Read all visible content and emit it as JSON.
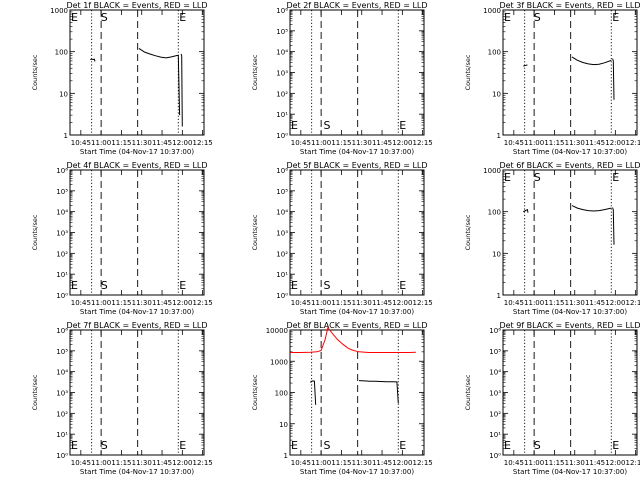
{
  "page": {
    "background": "#ffffff",
    "event_color": "#000000",
    "lld_color": "#ff0000"
  },
  "x_ticks": [
    "10:45",
    "11:00",
    "11:15",
    "11:30",
    "11:45",
    "12:00",
    "12:15"
  ],
  "marker_labels": {
    "start": "S",
    "end": "E"
  },
  "chart_data": [
    {
      "type": "line",
      "title": "Det 1f BLACK = Events, RED = LLD",
      "xlabel": "Start Time (04-Nov-17 10:37:00)",
      "ylabel": "Counts/sec",
      "xlim": [
        "10:37",
        "12:16"
      ],
      "ylim": [
        1,
        1000
      ],
      "y_ticks": [
        "1",
        "10",
        "100",
        "1000"
      ],
      "log_y": true,
      "dotted_lines": [
        "10:53",
        "11:57"
      ],
      "dashed_lines": [
        "11:00",
        "11:27"
      ],
      "markers": {
        "start_x": "10:59",
        "end_x": "11:57",
        "top": true
      },
      "series": [
        {
          "color": "black",
          "points": [
            [
              "10:52",
              65
            ],
            [
              "10:53",
              66
            ],
            [
              "10:54",
              65
            ],
            [
              "10:55",
              66
            ],
            [
              "10:55.5",
              58
            ]
          ]
        },
        {
          "color": "black",
          "points": [
            [
              "11:28",
              120
            ],
            [
              "11:32",
              98
            ],
            [
              "11:36",
              88
            ],
            [
              "11:40",
              80
            ],
            [
              "11:44",
              74
            ],
            [
              "11:48",
              71
            ],
            [
              "11:52",
              75
            ],
            [
              "11:56",
              81
            ],
            [
              "11:57",
              82
            ],
            [
              "11:58",
              3
            ]
          ]
        },
        {
          "color": "black",
          "points": [
            [
              "11:59",
              88
            ],
            [
              "11:59.5",
              80
            ],
            [
              "12:00",
              1.6
            ]
          ]
        }
      ]
    },
    {
      "type": "line",
      "title": "Det 2f BLACK = Events, RED = LLD",
      "xlabel": "Start Time (04-Nov-17 10:37:00)",
      "ylabel": "Counts/sec",
      "xlim": [
        "10:37",
        "12:16"
      ],
      "ylim": [
        1,
        1000000
      ],
      "y_ticks": [
        "10⁰",
        "10¹",
        "10²",
        "10³",
        "10⁴",
        "10⁵",
        "10⁶"
      ],
      "log_y": true,
      "dotted_lines": [
        "10:53",
        "11:57"
      ],
      "dashed_lines": [
        "11:00",
        "11:27"
      ],
      "markers": {
        "start_x": "11:01",
        "end_x": "11:57",
        "top": false
      },
      "series": []
    },
    {
      "type": "line",
      "title": "Det 3f BLACK = Events, RED = LLD",
      "xlabel": "Start Time (04-Nov-17 10:37:00)",
      "ylabel": "Counts/sec",
      "xlim": [
        "10:37",
        "12:16"
      ],
      "ylim": [
        1,
        1000
      ],
      "y_ticks": [
        "1",
        "10",
        "100",
        "1000"
      ],
      "log_y": true,
      "dotted_lines": [
        "10:53",
        "11:57"
      ],
      "dashed_lines": [
        "11:00",
        "11:27"
      ],
      "markers": {
        "start_x": "10:59",
        "end_x": "11:57",
        "top": true
      },
      "series": [
        {
          "color": "black",
          "points": [
            [
              "10:52",
              45
            ],
            [
              "10:53",
              46
            ],
            [
              "10:54",
              47
            ],
            [
              "10:55",
              48
            ]
          ]
        },
        {
          "color": "black",
          "points": [
            [
              "11:28",
              75
            ],
            [
              "11:32",
              62
            ],
            [
              "11:36",
              55
            ],
            [
              "11:40",
              51
            ],
            [
              "11:44",
              49
            ],
            [
              "11:48",
              50
            ],
            [
              "11:52",
              54
            ],
            [
              "11:56",
              60
            ],
            [
              "11:57",
              62
            ]
          ]
        },
        {
          "color": "black",
          "points": [
            [
              "11:58",
              68
            ],
            [
              "11:58.5",
              60
            ],
            [
              "11:59",
              7
            ]
          ]
        }
      ]
    },
    {
      "type": "line",
      "title": "Det 4f BLACK = Events, RED = LLD",
      "xlabel": "Start Time (04-Nov-17 10:37:00)",
      "ylabel": "Counts/sec",
      "xlim": [
        "10:37",
        "12:16"
      ],
      "ylim": [
        1,
        1000000
      ],
      "y_ticks": [
        "10⁰",
        "10¹",
        "10²",
        "10³",
        "10⁴",
        "10⁵",
        "10⁶"
      ],
      "log_y": true,
      "dotted_lines": [
        "10:53",
        "11:57"
      ],
      "dashed_lines": [
        "11:00",
        "11:27"
      ],
      "markers": {
        "start_x": "10:59",
        "end_x": "11:57",
        "top": false
      },
      "series": []
    },
    {
      "type": "line",
      "title": "Det 5f BLACK = Events, RED = LLD",
      "xlabel": "Start Time (04-Nov-17 10:37:00)",
      "ylabel": "Counts/sec",
      "xlim": [
        "10:37",
        "12:16"
      ],
      "ylim": [
        1,
        1000000
      ],
      "y_ticks": [
        "10⁰",
        "10¹",
        "10²",
        "10³",
        "10⁴",
        "10⁵",
        "10⁶"
      ],
      "log_y": true,
      "dotted_lines": [
        "10:53",
        "11:57"
      ],
      "dashed_lines": [
        "11:00",
        "11:27"
      ],
      "markers": {
        "start_x": "11:01",
        "end_x": "11:57",
        "top": false
      },
      "series": []
    },
    {
      "type": "line",
      "title": "Det 6f BLACK = Events, RED = LLD",
      "xlabel": "Start Time (04-Nov-17 10:37:00)",
      "ylabel": "Counts/sec",
      "xlim": [
        "10:37",
        "12:16"
      ],
      "ylim": [
        1,
        1000
      ],
      "y_ticks": [
        "1",
        "10",
        "100",
        "1000"
      ],
      "log_y": true,
      "dotted_lines": [
        "10:53",
        "11:57"
      ],
      "dashed_lines": [
        "11:00",
        "11:27"
      ],
      "markers": {
        "start_x": "10:59",
        "end_x": "11:57",
        "top": true
      },
      "series": [
        {
          "color": "black",
          "points": [
            [
              "10:52",
              100
            ],
            [
              "10:53",
              104
            ],
            [
              "10:54",
              108
            ],
            [
              "10:55",
              112
            ],
            [
              "10:55.5",
              95
            ]
          ]
        },
        {
          "color": "black",
          "points": [
            [
              "11:28",
              140
            ],
            [
              "11:32",
              122
            ],
            [
              "11:36",
              112
            ],
            [
              "11:40",
              106
            ],
            [
              "11:44",
              104
            ],
            [
              "11:48",
              106
            ],
            [
              "11:52",
              112
            ],
            [
              "11:56",
              120
            ],
            [
              "11:57",
              122
            ]
          ]
        },
        {
          "color": "black",
          "points": [
            [
              "11:58",
              126
            ],
            [
              "11:58.5",
              110
            ],
            [
              "11:59",
              16
            ]
          ]
        }
      ]
    },
    {
      "type": "line",
      "title": "Det 7f BLACK = Events, RED = LLD",
      "xlabel": "Start Time (04-Nov-17 10:37:00)",
      "ylabel": "Counts/sec",
      "xlim": [
        "10:37",
        "12:16"
      ],
      "ylim": [
        1,
        1000000
      ],
      "y_ticks": [
        "10⁰",
        "10¹",
        "10²",
        "10³",
        "10⁴",
        "10⁵",
        "10⁶"
      ],
      "log_y": true,
      "dotted_lines": [
        "10:53",
        "11:57"
      ],
      "dashed_lines": [
        "11:00",
        "11:27"
      ],
      "markers": {
        "start_x": "10:59",
        "end_x": "11:57",
        "top": false
      },
      "series": []
    },
    {
      "type": "line",
      "title": "Det 8f BLACK = Events, RED = LLD",
      "xlabel": "Start Time (04-Nov-17 10:37:00)",
      "ylabel": "Counts/sec",
      "xlim": [
        "10:37",
        "12:16"
      ],
      "ylim": [
        1,
        10000
      ],
      "y_ticks": [
        "1",
        "10",
        "100",
        "1000",
        "10000"
      ],
      "log_y": true,
      "dotted_lines": [
        "10:53",
        "11:57"
      ],
      "dashed_lines": [
        "11:00",
        "11:27"
      ],
      "markers": {
        "start_x": "11:01",
        "end_x": "11:57",
        "top": false
      },
      "series": [
        {
          "color": "red",
          "points": [
            [
              "10:37",
              1900
            ],
            [
              "10:45",
              1900
            ],
            [
              "10:52",
              1950
            ],
            [
              "10:57",
              2000
            ],
            [
              "11:00",
              2200
            ],
            [
              "11:03",
              5000
            ],
            [
              "11:05",
              12000
            ],
            [
              "11:08",
              8000
            ],
            [
              "11:12",
              5000
            ],
            [
              "11:16",
              3500
            ],
            [
              "11:20",
              2600
            ],
            [
              "11:24",
              2200
            ],
            [
              "11:28",
              2000
            ],
            [
              "11:35",
              1900
            ],
            [
              "11:45",
              1900
            ],
            [
              "11:55",
              1900
            ],
            [
              "12:05",
              1900
            ],
            [
              "12:10",
              1950
            ]
          ]
        },
        {
          "color": "black",
          "points": [
            [
              "10:52",
              210
            ],
            [
              "10:53",
              230
            ],
            [
              "10:54",
              235
            ],
            [
              "10:55",
              230
            ],
            [
              "10:56",
              40
            ]
          ]
        },
        {
          "color": "black",
          "points": [
            [
              "11:28",
              240
            ],
            [
              "11:32",
              235
            ],
            [
              "11:36",
              230
            ],
            [
              "11:40",
              228
            ],
            [
              "11:44",
              225
            ],
            [
              "11:48",
              222
            ],
            [
              "11:52",
              220
            ],
            [
              "11:56",
              218
            ],
            [
              "11:57",
              45
            ]
          ]
        }
      ]
    },
    {
      "type": "line",
      "title": "Det 9f BLACK = Events, RED = LLD",
      "xlabel": "Start Time (04-Nov-17 10:37:00)",
      "ylabel": "Counts/sec",
      "xlim": [
        "10:37",
        "12:16"
      ],
      "ylim": [
        1,
        1000000
      ],
      "y_ticks": [
        "10⁰",
        "10¹",
        "10²",
        "10³",
        "10⁴",
        "10⁵",
        "10⁶"
      ],
      "log_y": true,
      "dotted_lines": [
        "10:53",
        "11:57"
      ],
      "dashed_lines": [
        "11:00",
        "11:27"
      ],
      "markers": {
        "start_x": "10:59",
        "end_x": "11:57",
        "top": false
      },
      "series": []
    }
  ]
}
